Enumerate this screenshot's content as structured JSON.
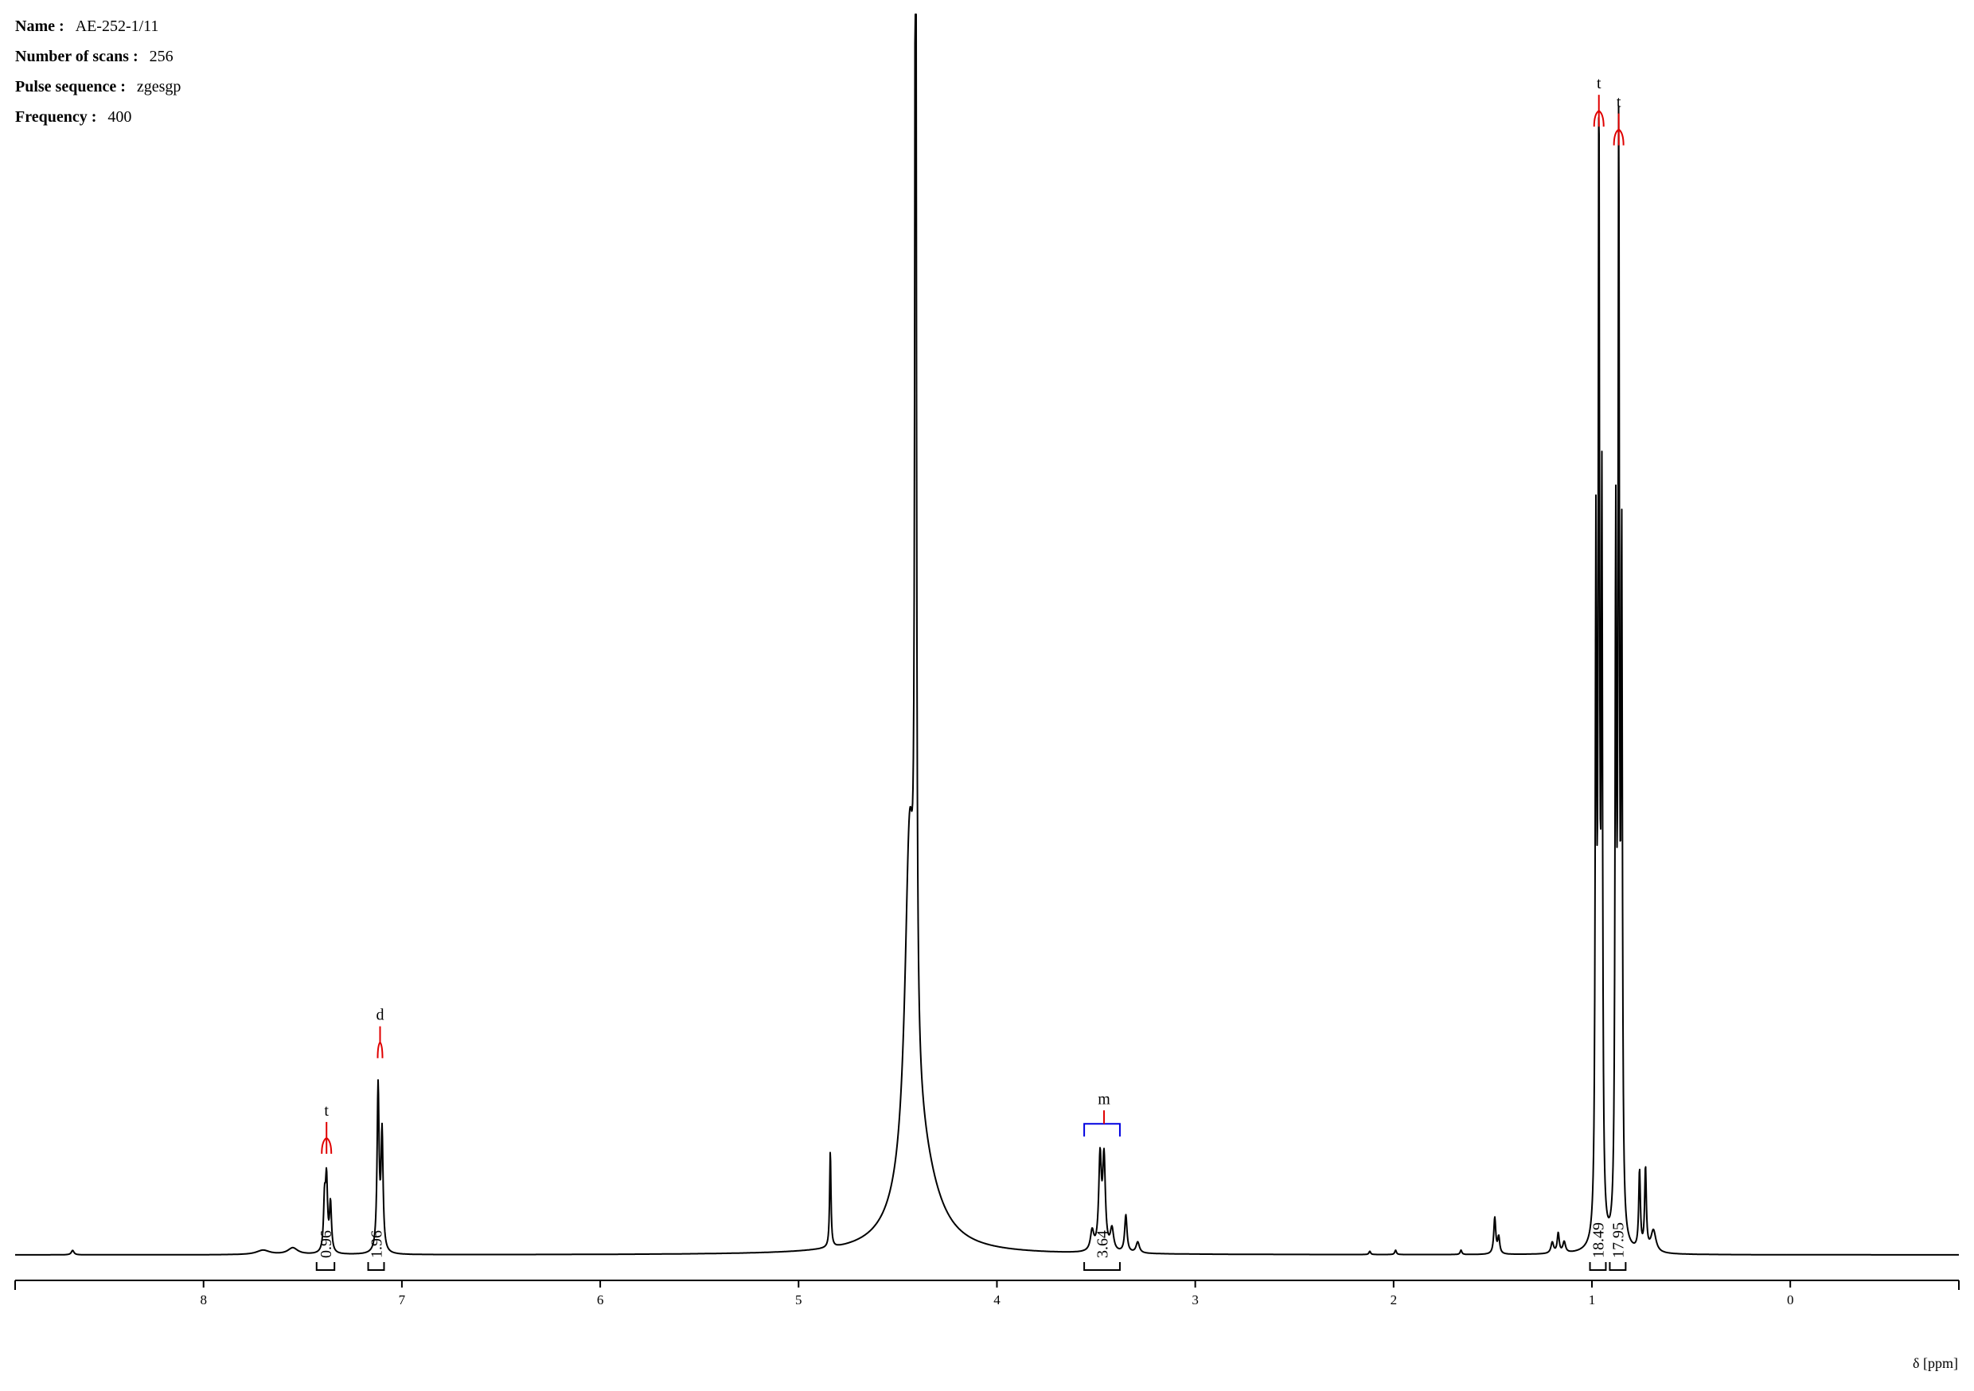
{
  "metadata": [
    {
      "label": "Name :",
      "value": "AE-252-1/11"
    },
    {
      "label": "Number of scans :",
      "value": "256"
    },
    {
      "label": "Pulse sequence :",
      "value": "zgesgp"
    },
    {
      "label": "Frequency :",
      "value": "400"
    }
  ],
  "chart_data": {
    "type": "line",
    "title": "",
    "xlabel": "δ [ppm]",
    "ylabel": "",
    "x_reversed": true,
    "xlim": [
      8.95,
      -0.85
    ],
    "ylim": [
      0,
      1.0
    ],
    "grid": false,
    "legend": "none",
    "x_ticks": [
      8,
      7,
      6,
      5,
      4,
      3,
      2,
      1,
      0
    ],
    "peaks": [
      {
        "ppm": 8.66,
        "height": 0.004,
        "width": 0.008
      },
      {
        "ppm": 7.7,
        "height": 0.004,
        "width": 0.04
      },
      {
        "ppm": 7.55,
        "height": 0.006,
        "width": 0.03
      },
      {
        "ppm": 7.39,
        "height": 0.045,
        "width": 0.006
      },
      {
        "ppm": 7.38,
        "height": 0.063,
        "width": 0.006
      },
      {
        "ppm": 7.36,
        "height": 0.044,
        "width": 0.006
      },
      {
        "ppm": 7.12,
        "height": 0.15,
        "width": 0.006
      },
      {
        "ppm": 7.1,
        "height": 0.107,
        "width": 0.006
      },
      {
        "ppm": 4.84,
        "height": 0.088,
        "width": 0.004
      },
      {
        "ppm": 4.41,
        "height": 1.4,
        "width": 0.004
      },
      {
        "ppm": 4.44,
        "height": 0.3,
        "width": 0.028
      },
      {
        "ppm": 4.4,
        "height": 0.09,
        "width": 0.11
      },
      {
        "ppm": 3.52,
        "height": 0.018,
        "width": 0.01
      },
      {
        "ppm": 3.48,
        "height": 0.083,
        "width": 0.008
      },
      {
        "ppm": 3.46,
        "height": 0.082,
        "width": 0.008
      },
      {
        "ppm": 3.42,
        "height": 0.02,
        "width": 0.01
      },
      {
        "ppm": 3.35,
        "height": 0.034,
        "width": 0.007
      },
      {
        "ppm": 3.29,
        "height": 0.01,
        "width": 0.01
      },
      {
        "ppm": 2.12,
        "height": 0.003,
        "width": 0.005
      },
      {
        "ppm": 1.99,
        "height": 0.004,
        "width": 0.005
      },
      {
        "ppm": 1.66,
        "height": 0.004,
        "width": 0.005
      },
      {
        "ppm": 1.49,
        "height": 0.033,
        "width": 0.006
      },
      {
        "ppm": 1.47,
        "height": 0.015,
        "width": 0.006
      },
      {
        "ppm": 1.2,
        "height": 0.01,
        "width": 0.008
      },
      {
        "ppm": 1.17,
        "height": 0.018,
        "width": 0.006
      },
      {
        "ppm": 1.14,
        "height": 0.01,
        "width": 0.008
      },
      {
        "ppm": 0.98,
        "height": 0.61,
        "width": 0.004
      },
      {
        "ppm": 0.965,
        "height": 0.997,
        "width": 0.004
      },
      {
        "ppm": 0.95,
        "height": 0.65,
        "width": 0.004
      },
      {
        "ppm": 0.88,
        "height": 0.62,
        "width": 0.004
      },
      {
        "ppm": 0.865,
        "height": 0.98,
        "width": 0.004
      },
      {
        "ppm": 0.85,
        "height": 0.61,
        "width": 0.004
      },
      {
        "ppm": 0.76,
        "height": 0.072,
        "width": 0.005
      },
      {
        "ppm": 0.73,
        "height": 0.075,
        "width": 0.005
      },
      {
        "ppm": 0.69,
        "height": 0.02,
        "width": 0.015
      }
    ],
    "multiplets": [
      {
        "label": "t",
        "center": 7.38,
        "lines": 3,
        "color": "#e00000"
      },
      {
        "label": "d",
        "center": 7.11,
        "lines": 2,
        "color": "#e00000"
      },
      {
        "label": "m",
        "center": 3.46,
        "range": [
          3.56,
          3.38
        ],
        "color": "#0000e0"
      },
      {
        "label": "t",
        "center": 0.965,
        "lines": 3,
        "color": "#e00000"
      },
      {
        "label": "t",
        "center": 0.865,
        "lines": 3,
        "color": "#e00000"
      }
    ],
    "integrals": [
      {
        "value": "0.96",
        "from": 7.43,
        "to": 7.34
      },
      {
        "value": "1.96",
        "from": 7.17,
        "to": 7.09
      },
      {
        "value": "3.64",
        "from": 3.56,
        "to": 3.38
      },
      {
        "value": "18.49",
        "from": 1.01,
        "to": 0.93
      },
      {
        "value": "17.95",
        "from": 0.91,
        "to": 0.83
      }
    ]
  }
}
